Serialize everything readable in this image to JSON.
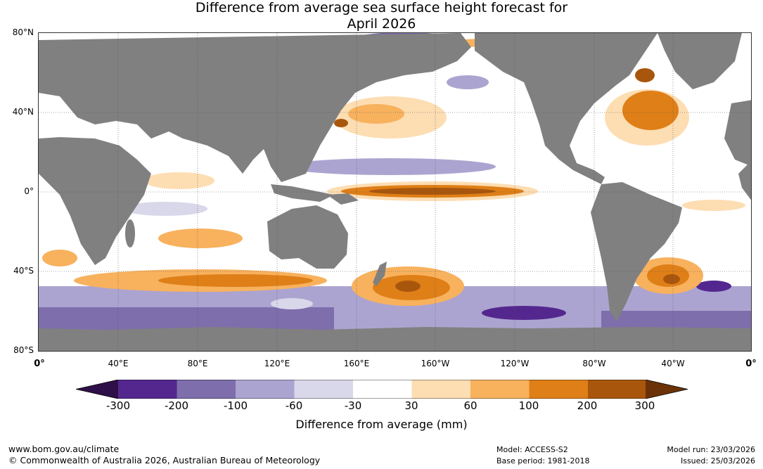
{
  "title": {
    "line1": "Difference from average sea surface height forecast for",
    "line2": "April 2026"
  },
  "map": {
    "latitude_labels": [
      "80°N",
      "40°N",
      "0°",
      "40°S",
      "80°S"
    ],
    "longitude_labels": [
      "0°",
      "40°E",
      "80°E",
      "120°E",
      "160°E",
      "160°W",
      "120°W",
      "80°W",
      "40°W",
      "0°"
    ],
    "colors": {
      "land": "#808080",
      "grid": "#555555"
    }
  },
  "legend": {
    "title": "Difference from average (mm)",
    "ticks": [
      "-300",
      "-200",
      "-100",
      "-60",
      "-30",
      "30",
      "60",
      "100",
      "200",
      "300"
    ],
    "colors": [
      "#2f0f47",
      "#54278f",
      "#7e6eac",
      "#aca4d0",
      "#d9d7ea",
      "#ffffff",
      "#fdddb2",
      "#f8b15d",
      "#df7f17",
      "#a9560d",
      "#6b3208"
    ]
  },
  "footer": {
    "website": "www.bom.gov.au/climate",
    "copyright": "© Commonwealth of Australia 2026, Australian Bureau of Meteorology",
    "model": "Model: ACCESS-S2",
    "base_period": "Base period: 1981-2018",
    "model_run": "Model run: 23/03/2026",
    "issued": "Issued: 25/03/2026"
  }
}
